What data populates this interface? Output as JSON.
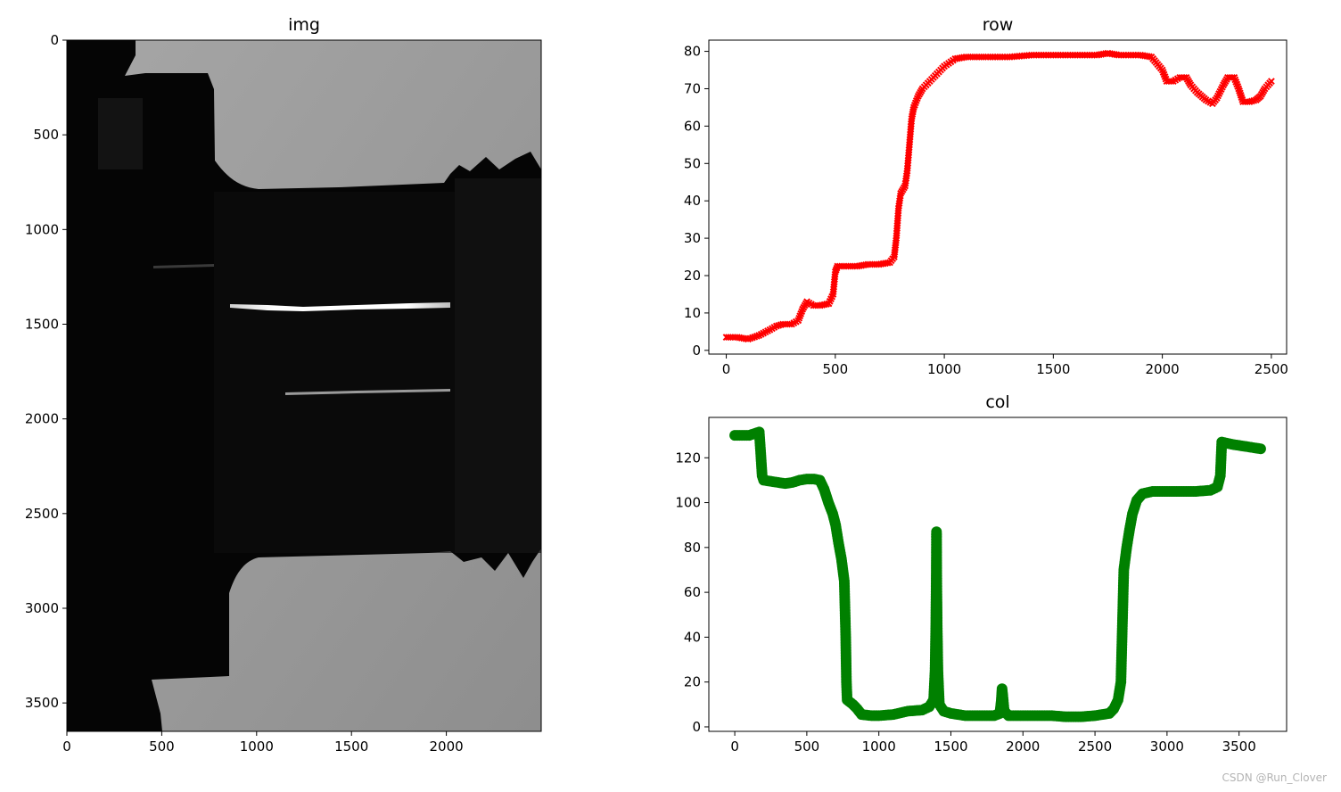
{
  "chart_data": [
    {
      "type": "image",
      "title": "img",
      "xlim": [
        0,
        2500
      ],
      "ylim": [
        3650,
        0
      ],
      "xticks": [
        0,
        500,
        1000,
        1500,
        2000
      ],
      "yticks": [
        0,
        500,
        1000,
        1500,
        2000,
        2500,
        3000,
        3500
      ],
      "colormap": "gray"
    },
    {
      "type": "scatter",
      "title": "row",
      "color": "#ff0000",
      "marker": "x",
      "xlim": [
        -80,
        2570
      ],
      "ylim": [
        -1,
        83
      ],
      "xticks": [
        0,
        500,
        1000,
        1500,
        2000,
        2500
      ],
      "yticks": [
        0,
        10,
        20,
        30,
        40,
        50,
        60,
        70,
        80
      ],
      "points": [
        [
          0,
          3.5
        ],
        [
          50,
          3.5
        ],
        [
          100,
          3
        ],
        [
          150,
          4
        ],
        [
          200,
          5.5
        ],
        [
          230,
          6.5
        ],
        [
          260,
          7
        ],
        [
          300,
          7
        ],
        [
          330,
          8
        ],
        [
          350,
          11
        ],
        [
          370,
          13
        ],
        [
          400,
          12
        ],
        [
          430,
          12
        ],
        [
          470,
          12.5
        ],
        [
          490,
          15
        ],
        [
          500,
          21
        ],
        [
          510,
          22.5
        ],
        [
          550,
          22.5
        ],
        [
          600,
          22.5
        ],
        [
          650,
          23
        ],
        [
          700,
          23
        ],
        [
          750,
          23.5
        ],
        [
          770,
          25
        ],
        [
          780,
          30
        ],
        [
          790,
          38
        ],
        [
          800,
          42
        ],
        [
          820,
          44
        ],
        [
          830,
          48
        ],
        [
          840,
          55
        ],
        [
          850,
          62
        ],
        [
          860,
          65
        ],
        [
          880,
          68
        ],
        [
          900,
          70
        ],
        [
          950,
          73
        ],
        [
          1000,
          76
        ],
        [
          1050,
          78
        ],
        [
          1100,
          78.5
        ],
        [
          1150,
          78.5
        ],
        [
          1200,
          78.5
        ],
        [
          1300,
          78.5
        ],
        [
          1400,
          79
        ],
        [
          1500,
          79
        ],
        [
          1600,
          79
        ],
        [
          1700,
          79
        ],
        [
          1750,
          79.5
        ],
        [
          1800,
          79
        ],
        [
          1900,
          79
        ],
        [
          1950,
          78.5
        ],
        [
          2000,
          75
        ],
        [
          2020,
          72
        ],
        [
          2050,
          72
        ],
        [
          2080,
          73
        ],
        [
          2110,
          73
        ],
        [
          2130,
          71
        ],
        [
          2160,
          69
        ],
        [
          2200,
          67
        ],
        [
          2230,
          66
        ],
        [
          2250,
          67.5
        ],
        [
          2280,
          71
        ],
        [
          2300,
          73
        ],
        [
          2330,
          73
        ],
        [
          2350,
          70
        ],
        [
          2370,
          66.5
        ],
        [
          2400,
          66.5
        ],
        [
          2430,
          67
        ],
        [
          2450,
          68
        ],
        [
          2470,
          70
        ],
        [
          2500,
          72
        ]
      ]
    },
    {
      "type": "scatter",
      "title": "col",
      "color": "#008000",
      "marker": "o",
      "xlim": [
        -180,
        3830
      ],
      "ylim": [
        -2,
        138
      ],
      "xticks": [
        0,
        500,
        1000,
        1500,
        2000,
        2500,
        3000,
        3500
      ],
      "yticks": [
        0,
        20,
        40,
        60,
        80,
        100,
        120
      ],
      "points": [
        [
          0,
          130
        ],
        [
          100,
          130
        ],
        [
          170,
          131.5
        ],
        [
          180,
          122
        ],
        [
          190,
          112
        ],
        [
          200,
          110
        ],
        [
          300,
          109
        ],
        [
          350,
          108.5
        ],
        [
          400,
          109
        ],
        [
          450,
          110
        ],
        [
          500,
          110.5
        ],
        [
          550,
          110.5
        ],
        [
          590,
          110
        ],
        [
          620,
          106
        ],
        [
          650,
          100
        ],
        [
          680,
          95
        ],
        [
          700,
          90
        ],
        [
          720,
          82
        ],
        [
          740,
          75
        ],
        [
          760,
          65
        ],
        [
          770,
          40
        ],
        [
          775,
          20
        ],
        [
          780,
          12
        ],
        [
          820,
          10
        ],
        [
          850,
          8
        ],
        [
          880,
          5.5
        ],
        [
          950,
          5
        ],
        [
          1000,
          5
        ],
        [
          1100,
          5.5
        ],
        [
          1200,
          7
        ],
        [
          1300,
          7.5
        ],
        [
          1350,
          9
        ],
        [
          1380,
          12
        ],
        [
          1390,
          25
        ],
        [
          1395,
          45
        ],
        [
          1398,
          65
        ],
        [
          1400,
          87
        ],
        [
          1402,
          65
        ],
        [
          1405,
          45
        ],
        [
          1410,
          25
        ],
        [
          1420,
          10
        ],
        [
          1450,
          7
        ],
        [
          1500,
          6
        ],
        [
          1600,
          5
        ],
        [
          1700,
          5
        ],
        [
          1800,
          5
        ],
        [
          1840,
          6
        ],
        [
          1850,
          12
        ],
        [
          1855,
          17
        ],
        [
          1860,
          14
        ],
        [
          1870,
          7
        ],
        [
          1900,
          5
        ],
        [
          2000,
          5
        ],
        [
          2100,
          5
        ],
        [
          2200,
          5
        ],
        [
          2300,
          4.5
        ],
        [
          2400,
          4.5
        ],
        [
          2500,
          5
        ],
        [
          2550,
          5.5
        ],
        [
          2600,
          6
        ],
        [
          2630,
          8
        ],
        [
          2660,
          12
        ],
        [
          2680,
          20
        ],
        [
          2690,
          45
        ],
        [
          2700,
          70
        ],
        [
          2720,
          80
        ],
        [
          2740,
          88
        ],
        [
          2760,
          95
        ],
        [
          2790,
          101
        ],
        [
          2830,
          104
        ],
        [
          2900,
          105
        ],
        [
          3000,
          105
        ],
        [
          3100,
          105
        ],
        [
          3200,
          105
        ],
        [
          3300,
          105.5
        ],
        [
          3350,
          107
        ],
        [
          3370,
          112
        ],
        [
          3380,
          127
        ],
        [
          3450,
          126
        ],
        [
          3550,
          125
        ],
        [
          3650,
          124
        ]
      ]
    }
  ],
  "watermark": "CSDN @Run_Clover"
}
